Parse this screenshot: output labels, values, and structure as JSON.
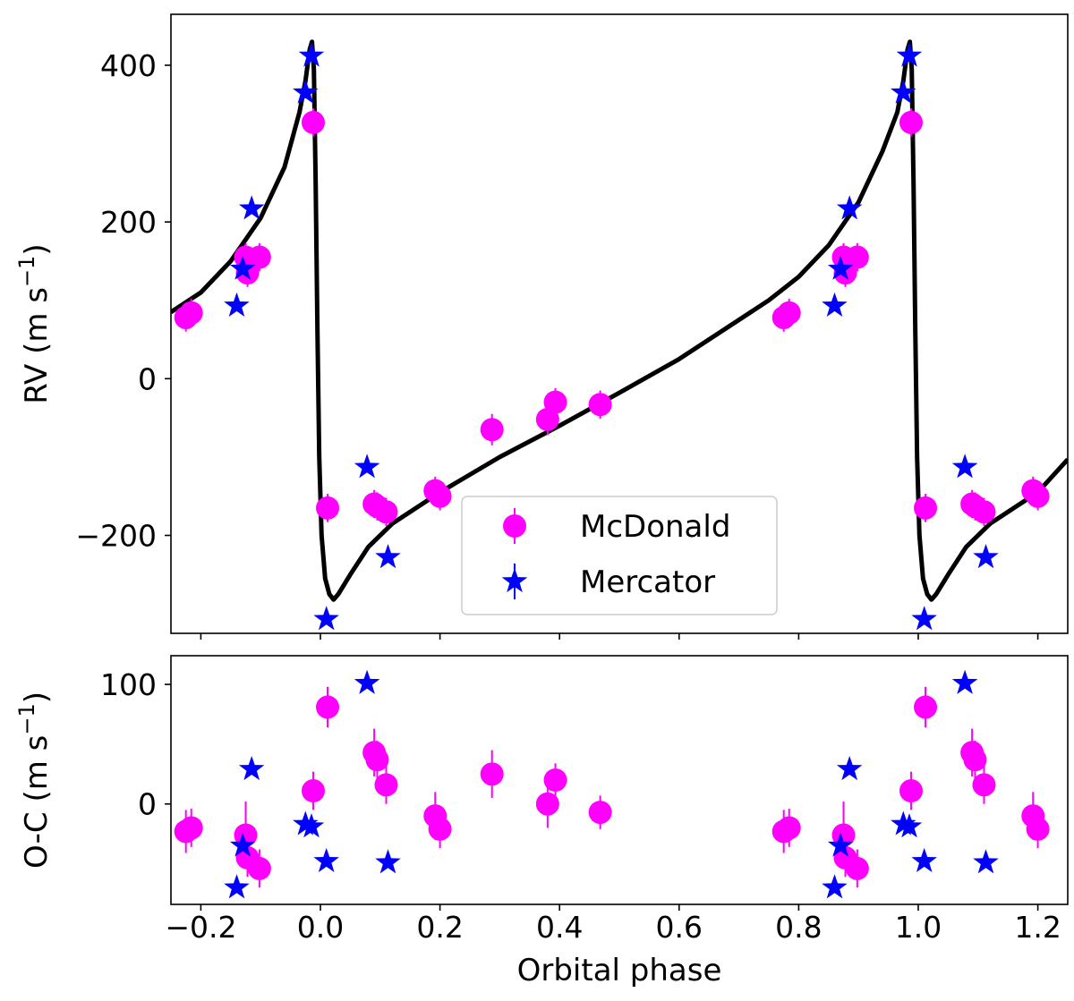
{
  "chart_data": [
    {
      "type": "scatter",
      "panel": "rv",
      "xlim": [
        -0.25,
        1.25
      ],
      "ylim": [
        -325,
        465
      ],
      "yticks": [
        -200,
        0,
        200,
        400
      ],
      "ytick_labels": [
        "−200",
        "0",
        "200",
        "400"
      ],
      "xticks": [
        -0.2,
        0.0,
        0.2,
        0.4,
        0.6,
        0.8,
        1.0,
        1.2
      ],
      "ylabel_main": "RV (m s",
      "ylabel_sup": "−1",
      "ylabel_close": ")",
      "legend": {
        "placement": "lower-center",
        "entries": [
          {
            "label": "McDonald",
            "marker": "circle",
            "color": "#ff00ff"
          },
          {
            "label": "Mercator",
            "marker": "star",
            "color": "#0000ff"
          }
        ]
      },
      "model": {
        "color": "#000000",
        "points": [
          [
            -0.25,
            85
          ],
          [
            -0.2,
            110
          ],
          [
            -0.15,
            150
          ],
          [
            -0.1,
            205
          ],
          [
            -0.06,
            270
          ],
          [
            -0.035,
            340
          ],
          [
            -0.025,
            380
          ],
          [
            -0.018,
            420
          ],
          [
            -0.014,
            430
          ],
          [
            -0.011,
            395
          ],
          [
            -0.008,
            250
          ],
          [
            -0.005,
            60
          ],
          [
            -0.002,
            -100
          ],
          [
            0.002,
            -200
          ],
          [
            0.008,
            -255
          ],
          [
            0.015,
            -275
          ],
          [
            0.022,
            -282
          ],
          [
            0.03,
            -275
          ],
          [
            0.05,
            -250
          ],
          [
            0.08,
            -215
          ],
          [
            0.12,
            -185
          ],
          [
            0.2,
            -145
          ],
          [
            0.3,
            -100
          ],
          [
            0.4,
            -60
          ],
          [
            0.5,
            -18
          ],
          [
            0.6,
            25
          ],
          [
            0.7,
            75
          ],
          [
            0.75,
            100
          ],
          [
            0.8,
            130
          ],
          [
            0.85,
            170
          ],
          [
            0.9,
            225
          ],
          [
            0.94,
            290
          ],
          [
            0.965,
            340
          ],
          [
            0.975,
            380
          ],
          [
            0.982,
            420
          ],
          [
            0.986,
            430
          ],
          [
            0.989,
            395
          ],
          [
            0.992,
            250
          ],
          [
            0.995,
            60
          ],
          [
            0.998,
            -100
          ],
          [
            1.002,
            -200
          ],
          [
            1.008,
            -255
          ],
          [
            1.015,
            -275
          ],
          [
            1.022,
            -282
          ],
          [
            1.03,
            -275
          ],
          [
            1.05,
            -250
          ],
          [
            1.08,
            -215
          ],
          [
            1.12,
            -185
          ],
          [
            1.2,
            -145
          ],
          [
            1.25,
            -103
          ]
        ]
      },
      "series": [
        {
          "name": "McDonald",
          "marker": "circle",
          "color": "#ff00ff",
          "points": [
            [
              -0.225,
              78,
              18
            ],
            [
              -0.216,
              84,
              18
            ],
            [
              -0.125,
              155,
              18
            ],
            [
              -0.122,
              135,
              18
            ],
            [
              -0.102,
              155,
              18
            ],
            [
              -0.012,
              327,
              18
            ],
            [
              0.012,
              -165,
              18
            ],
            [
              0.09,
              -160,
              18
            ],
            [
              0.095,
              -163,
              18
            ],
            [
              0.11,
              -170,
              18
            ],
            [
              0.192,
              -143,
              18
            ],
            [
              0.2,
              -150,
              18
            ],
            [
              0.287,
              -65,
              20
            ],
            [
              0.38,
              -52,
              20
            ],
            [
              0.393,
              -30,
              18
            ],
            [
              0.468,
              -33,
              18
            ],
            [
              0.775,
              78,
              18
            ],
            [
              0.784,
              84,
              18
            ],
            [
              0.875,
              155,
              18
            ],
            [
              0.878,
              135,
              18
            ],
            [
              0.898,
              155,
              18
            ],
            [
              0.988,
              327,
              18
            ],
            [
              1.012,
              -165,
              18
            ],
            [
              1.09,
              -160,
              18
            ],
            [
              1.095,
              -163,
              18
            ],
            [
              1.11,
              -170,
              18
            ],
            [
              1.192,
              -143,
              18
            ],
            [
              1.2,
              -150,
              18
            ]
          ]
        },
        {
          "name": "Mercator",
          "marker": "star",
          "color": "#0000ff",
          "points": [
            [
              -0.14,
              93
            ],
            [
              -0.13,
              140
            ],
            [
              -0.115,
              217
            ],
            [
              -0.025,
              365
            ],
            [
              -0.015,
              412
            ],
            [
              0.01,
              -307
            ],
            [
              0.078,
              -113
            ],
            [
              0.113,
              -228
            ],
            [
              0.86,
              93
            ],
            [
              0.87,
              140
            ],
            [
              0.885,
              217
            ],
            [
              0.975,
              365
            ],
            [
              0.985,
              412
            ],
            [
              1.01,
              -307
            ],
            [
              1.078,
              -113
            ],
            [
              1.113,
              -228
            ]
          ]
        }
      ]
    },
    {
      "type": "scatter",
      "panel": "residuals",
      "xlim": [
        -0.25,
        1.25
      ],
      "ylim": [
        -84,
        124
      ],
      "yticks": [
        0,
        100
      ],
      "ytick_labels": [
        "0",
        "100"
      ],
      "xticks": [
        -0.2,
        0.0,
        0.2,
        0.4,
        0.6,
        0.8,
        1.0,
        1.2
      ],
      "xtick_labels": [
        "−0.2",
        "0.0",
        "0.2",
        "0.4",
        "0.6",
        "0.8",
        "1.0",
        "1.2"
      ],
      "xlabel": "Orbital phase",
      "ylabel_main": "O-C (m s",
      "ylabel_sup": "−1",
      "ylabel_close": ")",
      "series": [
        {
          "name": "McDonald",
          "marker": "circle",
          "color": "#ff00ff",
          "points": [
            [
              -0.225,
              -23,
              18
            ],
            [
              -0.216,
              -20,
              16
            ],
            [
              -0.125,
              -26,
              28
            ],
            [
              -0.122,
              -45,
              16
            ],
            [
              -0.102,
              -54,
              16
            ],
            [
              -0.012,
              11,
              16
            ],
            [
              0.012,
              81,
              17
            ],
            [
              0.09,
              43,
              20
            ],
            [
              0.095,
              37,
              16
            ],
            [
              0.11,
              16,
              16
            ],
            [
              0.192,
              -10,
              20
            ],
            [
              0.2,
              -21,
              16
            ],
            [
              0.287,
              25,
              20
            ],
            [
              0.38,
              0,
              20
            ],
            [
              0.393,
              20,
              14
            ],
            [
              0.468,
              -7,
              14
            ],
            [
              0.775,
              -23,
              18
            ],
            [
              0.784,
              -20,
              16
            ],
            [
              0.875,
              -26,
              28
            ],
            [
              0.878,
              -45,
              16
            ],
            [
              0.898,
              -54,
              16
            ],
            [
              0.988,
              11,
              16
            ],
            [
              1.012,
              81,
              17
            ],
            [
              1.09,
              43,
              20
            ],
            [
              1.095,
              37,
              16
            ],
            [
              1.11,
              16,
              16
            ],
            [
              1.192,
              -10,
              20
            ],
            [
              1.2,
              -21,
              16
            ]
          ]
        },
        {
          "name": "Mercator",
          "marker": "star",
          "color": "#0000ff",
          "points": [
            [
              -0.14,
              -70
            ],
            [
              -0.13,
              -35
            ],
            [
              -0.115,
              29
            ],
            [
              -0.025,
              -17
            ],
            [
              -0.015,
              -19
            ],
            [
              0.01,
              -48
            ],
            [
              0.078,
              101
            ],
            [
              0.113,
              -49
            ],
            [
              0.86,
              -70
            ],
            [
              0.87,
              -35
            ],
            [
              0.885,
              29
            ],
            [
              0.975,
              -17
            ],
            [
              0.985,
              -19
            ],
            [
              1.01,
              -48
            ],
            [
              1.078,
              101
            ],
            [
              1.113,
              -49
            ]
          ]
        }
      ]
    }
  ]
}
